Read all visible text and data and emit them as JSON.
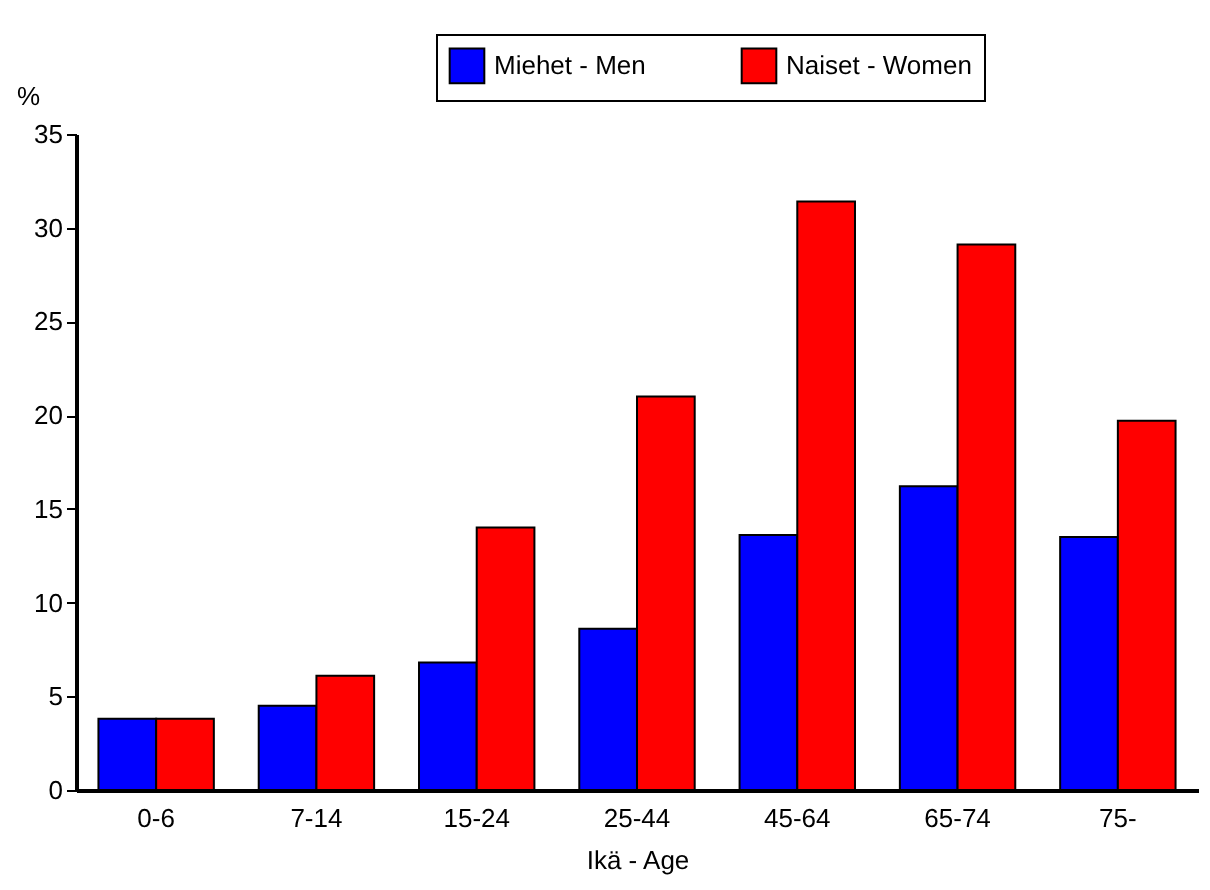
{
  "chart_data": {
    "type": "bar",
    "xlabel": "Ikä - Age",
    "ylabel": "%",
    "categories": [
      "0-6",
      "7-14",
      "15-24",
      "25-44",
      "45-64",
      "65-74",
      "75-"
    ],
    "series": [
      {
        "name": "Miehet - Men",
        "color": "#0000ff",
        "values": [
          3.8,
          4.5,
          6.8,
          8.6,
          13.6,
          16.2,
          13.5
        ]
      },
      {
        "name": "Naiset - Women",
        "color": "#ff0000",
        "values": [
          3.8,
          6.1,
          14.0,
          21.0,
          31.4,
          29.1,
          19.7
        ]
      }
    ],
    "ylim": [
      0,
      35
    ],
    "yticks": [
      0,
      5,
      10,
      15,
      20,
      25,
      30,
      35
    ],
    "grid": false,
    "legend": "top right"
  }
}
